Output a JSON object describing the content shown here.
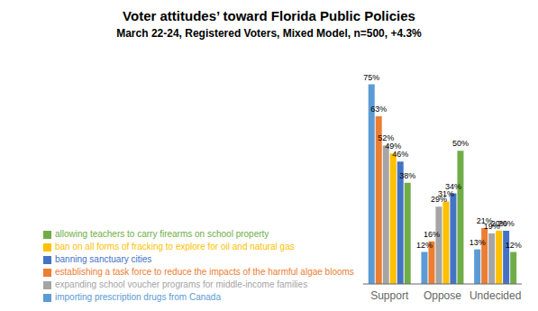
{
  "chart_data": {
    "type": "bar",
    "title": "Voter attitudes’ toward Florida Public Policies",
    "subtitle": "March 22-24, Registered Voters, Mixed Model, n=500, +4.3%",
    "categories": [
      "Support",
      "Oppose",
      "Undecided"
    ],
    "series": [
      {
        "name": "importing prescription drugs from Canada",
        "color": "#5B9BD5",
        "values": [
          75,
          12,
          13
        ],
        "value_labels": [
          "75%",
          "12%",
          "13%"
        ]
      },
      {
        "name": "establishing a task force to reduce the impacts of the harmful algae blooms",
        "color": "#ED7D31",
        "values": [
          63,
          16,
          21
        ],
        "value_labels": [
          "63%",
          "16%",
          "21%"
        ]
      },
      {
        "name": "expanding school voucher programs for middle-income families",
        "color": "#A5A5A5",
        "values": [
          52,
          29,
          19
        ],
        "value_labels": [
          "52%",
          "29%",
          "19%"
        ]
      },
      {
        "name": "ban on all forms of fracking to explore for oil and natural gas",
        "color": "#FFC000",
        "values": [
          49,
          31,
          20
        ],
        "value_labels": [
          "49%",
          "31%",
          "20%"
        ]
      },
      {
        "name": "banning sanctuary cities",
        "color": "#4472C4",
        "values": [
          46,
          34,
          20
        ],
        "value_labels": [
          "46%",
          "34%",
          "20%"
        ]
      },
      {
        "name": "allowing teachers to carry firearms on school property",
        "color": "#70AD47",
        "values": [
          38,
          50,
          12
        ],
        "value_labels": [
          "38%",
          "50%",
          "12%"
        ]
      }
    ],
    "ylim": [
      0,
      85
    ],
    "grid": false,
    "legend": "lower left",
    "data_labels": true,
    "tick_labels": "x"
  }
}
